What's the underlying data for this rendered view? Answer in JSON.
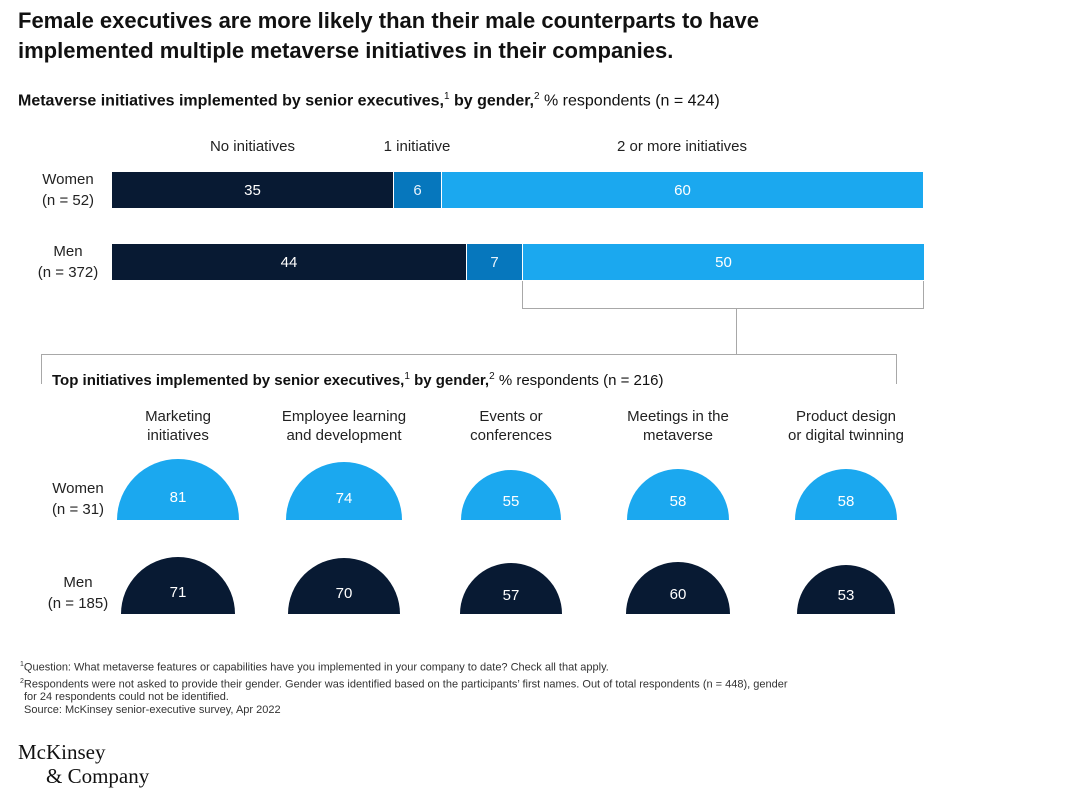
{
  "headline": "Female executives are more likely than their male counterparts to have\nimplemented multiple metaverse initiatives in their companies.",
  "chart_data": [
    {
      "type": "bar",
      "subtype": "stacked-horizontal-100",
      "title": "Metaverse initiatives implemented by senior executives,",
      "title_sup1": "1",
      "title_by": " by gender,",
      "title_sup2": "2",
      "title_unit": " % respondents (n = 424)",
      "segment_labels": [
        "No initiatives",
        "1 initiative",
        "2 or more initiatives"
      ],
      "colors": [
        "#081a33",
        "#0677bd",
        "#1ba8ef"
      ],
      "categories": [
        {
          "name": "Women",
          "n": "(n = 52)"
        },
        {
          "name": "Men",
          "n": "(n = 372)"
        }
      ],
      "series": [
        {
          "name": "No initiatives",
          "values": [
            35,
            44
          ]
        },
        {
          "name": "1 initiative",
          "values": [
            6,
            7
          ]
        },
        {
          "name": "2 or more initiatives",
          "values": [
            60,
            50
          ]
        }
      ]
    },
    {
      "type": "semicircle",
      "title": "Top initiatives implemented by senior executives,",
      "title_sup1": "1",
      "title_by": " by gender,",
      "title_sup2": "2",
      "title_unit": " % respondents (n = 216)",
      "categories": [
        "Marketing\ninitiatives",
        "Employee learning\nand development",
        "Events or\nconferences",
        "Meetings in the\nmetaverse",
        "Product design\nor digital twinning"
      ],
      "colors": {
        "Women": "#1ba8ef",
        "Men": "#081a33"
      },
      "series": [
        {
          "name": "Women",
          "n": "(n = 31)",
          "values": [
            81,
            74,
            55,
            58,
            58
          ]
        },
        {
          "name": "Men",
          "n": "(n = 185)",
          "values": [
            71,
            70,
            57,
            60,
            53
          ]
        }
      ]
    }
  ],
  "footnotes": [
    {
      "sup": "1",
      "text": "Question: What metaverse features or capabilities have you implemented in your company to date? Check all that apply."
    },
    {
      "sup": "2",
      "text": "Respondents were not asked to provide their gender. Gender was identified based on the participants’ first names. Out of total respondents (n = 448), gender"
    },
    {
      "sup": "",
      "text": "for 24 respondents could not be identified."
    },
    {
      "sup": "",
      "text": "Source: McKinsey senior-executive survey, Apr 2022"
    }
  ],
  "logo": {
    "line1": "McKinsey",
    "line2": "& Company"
  }
}
